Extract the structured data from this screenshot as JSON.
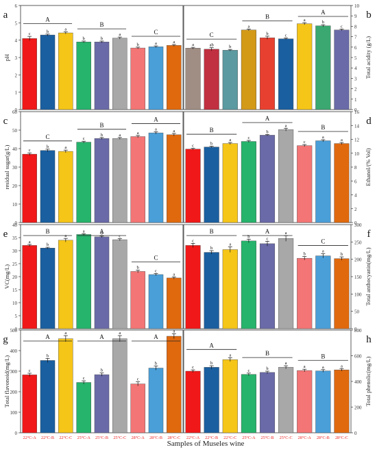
{
  "figure": {
    "x_title": "Samples of Museles wine",
    "categories": [
      "22°C-A",
      "22°C-B",
      "22°C-C",
      "25°C-A",
      "25°C-B",
      "25°C-C",
      "28°C-A",
      "28°C-B",
      "28°C-C"
    ]
  },
  "colors": {
    "bars": [
      "#f01818",
      "#1a5fa0",
      "#f5c518",
      "#26b36b",
      "#6a6aa8",
      "#a8a8a8",
      "#f47575",
      "#4a9fd8",
      "#e0690e"
    ],
    "bars_b": [
      "#a08e84",
      "#c03040",
      "#5a9aa0",
      "#d39a18",
      "#e84030",
      "#1a5fa0",
      "#f5c518",
      "#3aa870",
      "#6a6aa8"
    ],
    "tick_labels": "#ee2222",
    "letters": "#000000"
  },
  "chart_data": [
    {
      "panel": "a",
      "type": "bar",
      "side": "left",
      "ylabel": "pH",
      "ylim": [
        0,
        6
      ],
      "ticks": [
        0,
        1,
        2,
        3,
        4,
        5,
        6
      ],
      "values": [
        4.1,
        4.3,
        4.42,
        3.9,
        3.9,
        4.12,
        3.55,
        3.62,
        3.7
      ],
      "errors": [
        0.12,
        0.05,
        0.06,
        0.05,
        0.05,
        0.06,
        0.05,
        0.05,
        0.05
      ],
      "letters": [
        "c",
        "b",
        "a",
        "b",
        "b",
        "a",
        "b",
        "a",
        "a"
      ],
      "groups": [
        "A",
        "B",
        "C"
      ]
    },
    {
      "panel": "b",
      "type": "bar",
      "side": "right",
      "ylabel": "Total acidity (g/L)",
      "ylim": [
        0,
        10
      ],
      "ticks": [
        0,
        1,
        2,
        3,
        4,
        5,
        6,
        7,
        8,
        9,
        10
      ],
      "values": [
        5.9,
        5.8,
        5.7,
        7.65,
        6.9,
        6.8,
        8.25,
        8.05,
        7.65
      ],
      "errors": [
        0.08,
        0.15,
        0.08,
        0.08,
        0.15,
        0.08,
        0.1,
        0.1,
        0.08
      ],
      "letters": [
        "a",
        "ab",
        "b",
        "a",
        "b",
        "c",
        "a",
        "b",
        "c"
      ],
      "groups": [
        "C",
        "B",
        "A"
      ]
    },
    {
      "panel": "c",
      "type": "bar",
      "side": "left",
      "ylabel": "residual sugar(g/L)",
      "ylim": [
        0,
        60
      ],
      "ticks": [
        0,
        10,
        20,
        30,
        40,
        50,
        60
      ],
      "values": [
        37,
        39,
        38.5,
        43.5,
        45.5,
        45.5,
        46.5,
        48.5,
        47.5
      ],
      "errors": [
        0.7,
        0.7,
        0.7,
        0.5,
        0.5,
        0.5,
        0.6,
        0.6,
        0.7
      ],
      "letters": [
        "c",
        "b",
        "a",
        "c",
        "b",
        "a",
        "a",
        "a",
        "a"
      ],
      "groups": [
        "C",
        "B",
        "A"
      ]
    },
    {
      "panel": "d",
      "type": "bar",
      "side": "right",
      "ylabel": "Ethanol/(% Vol)",
      "ylim": [
        0,
        16
      ],
      "ticks": [
        0,
        2,
        4,
        6,
        8,
        10,
        12,
        14,
        16
      ],
      "values": [
        10.6,
        10.9,
        11.4,
        11.7,
        12.6,
        13.4,
        11.1,
        11.8,
        11.4
      ],
      "errors": [
        0.1,
        0.1,
        0.15,
        0.15,
        0.1,
        0.2,
        0.15,
        0.15,
        0.15
      ],
      "letters": [
        "c",
        "b",
        "a",
        "c",
        "b",
        "a",
        "c",
        "a",
        "a"
      ],
      "groups": [
        "B",
        "A",
        "B"
      ]
    },
    {
      "panel": "e",
      "type": "bar",
      "side": "left",
      "ylabel": "VC(mg/L)",
      "ylim": [
        0,
        40
      ],
      "ticks": [
        0,
        5,
        10,
        15,
        20,
        25,
        30,
        35,
        40
      ],
      "values": [
        32,
        31,
        34,
        36.2,
        35.3,
        34.2,
        22,
        20.8,
        19.5
      ],
      "errors": [
        0.4,
        0.3,
        0.7,
        0.3,
        0.3,
        0.4,
        0.5,
        0.4,
        0.4
      ],
      "letters": [
        "a",
        "b",
        "a",
        "a",
        "b",
        "c",
        "b",
        "c",
        "a"
      ],
      "groups": [
        "B",
        "A",
        "C"
      ]
    },
    {
      "panel": "f",
      "type": "bar",
      "side": "right",
      "ylabel": "Total anthocyanin(mg/L)",
      "ylim": [
        0,
        300
      ],
      "ticks": [
        0,
        50,
        100,
        150,
        200,
        250,
        300
      ],
      "values": [
        240,
        220,
        228,
        253,
        245,
        260,
        203,
        210,
        202
      ],
      "errors": [
        6,
        5,
        8,
        5,
        7,
        8,
        5,
        6,
        5
      ],
      "letters": [
        "c",
        "b",
        "a",
        "b",
        "c",
        "a",
        "b",
        "a",
        "b"
      ],
      "groups": [
        "B",
        "A",
        "C"
      ]
    },
    {
      "panel": "g",
      "type": "bar",
      "side": "left",
      "ylabel": "Total flavonoid(mg/L)",
      "ylim": [
        0,
        500
      ],
      "ticks": [
        0,
        100,
        200,
        300,
        400,
        500
      ],
      "values": [
        282,
        352,
        458,
        245,
        283,
        458,
        238,
        315,
        470
      ],
      "errors": [
        8,
        10,
        15,
        8,
        8,
        15,
        10,
        10,
        12
      ],
      "letters": [
        "c",
        "b",
        "a",
        "c",
        "b",
        "a",
        "c",
        "b",
        "a"
      ],
      "groups": [
        "A",
        "A",
        "A"
      ]
    },
    {
      "panel": "h",
      "type": "bar",
      "side": "right",
      "ylabel": "Total phenolic(mg/L)",
      "ylim": [
        0,
        800
      ],
      "ticks": [
        0,
        200,
        400,
        600,
        800
      ],
      "values": [
        480,
        510,
        570,
        455,
        470,
        510,
        485,
        482,
        490
      ],
      "errors": [
        10,
        12,
        15,
        10,
        10,
        12,
        10,
        10,
        10
      ],
      "letters": [
        "c",
        "b",
        "a",
        "c",
        "b",
        "a",
        "a",
        "a",
        "a"
      ],
      "groups": [
        "A",
        "B",
        "B"
      ]
    }
  ],
  "panel_labels": [
    "a",
    "b",
    "c",
    "d",
    "e",
    "f",
    "g",
    "h"
  ]
}
